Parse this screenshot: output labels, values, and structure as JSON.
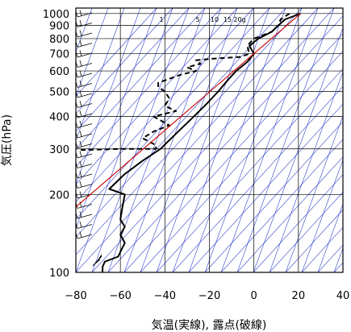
{
  "chart_data": {
    "type": "line",
    "title": "",
    "xlabel": "気温(実線), 露点(破線)",
    "ylabel": "気圧(hPa)",
    "xlim": [
      -80,
      40
    ],
    "ylim": [
      1050,
      100
    ],
    "y_scale": "log",
    "grid": true,
    "x_ticks": [
      -80,
      -60,
      -40,
      -20,
      0,
      20,
      40
    ],
    "x_tick_labels": [
      "−80",
      "−60",
      "−40",
      "−20",
      "0",
      "20",
      "40"
    ],
    "y_ticks": [
      100,
      200,
      300,
      400,
      500,
      600,
      700,
      800,
      900,
      1000
    ],
    "y_tick_labels": [
      "100",
      "200",
      "300",
      "400",
      "500",
      "600",
      "700",
      "800",
      "900",
      "1000"
    ],
    "mixing_ratio_labels": [
      "1",
      "5",
      "10",
      "15",
      "20g"
    ],
    "series": [
      {
        "style": "solid",
        "color": "#000000",
        "points": [
          [
            21,
            1000
          ],
          [
            14,
            950
          ],
          [
            11,
            900
          ],
          [
            8,
            850
          ],
          [
            2,
            800
          ],
          [
            -2,
            750
          ],
          [
            0,
            700
          ],
          [
            -3,
            650
          ],
          [
            -8,
            600
          ],
          [
            -12,
            550
          ],
          [
            -16,
            500
          ],
          [
            -21,
            450
          ],
          [
            -27,
            400
          ],
          [
            -34,
            350
          ],
          [
            -42,
            300
          ],
          [
            -50,
            270
          ],
          [
            -58,
            240
          ],
          [
            -65,
            210
          ],
          [
            -58,
            200
          ],
          [
            -59,
            180
          ],
          [
            -60,
            160
          ],
          [
            -58,
            150
          ],
          [
            -60,
            140
          ],
          [
            -58,
            130
          ],
          [
            -60,
            120
          ],
          [
            -61,
            115
          ],
          [
            -67,
            110
          ],
          [
            -68,
            105
          ],
          [
            -68,
            100
          ]
        ]
      },
      {
        "style": "dashed",
        "color": "#000000",
        "points": [
          [
            16,
            1000
          ],
          [
            12,
            950
          ],
          [
            11,
            900
          ],
          [
            8,
            850
          ],
          [
            0,
            800
          ],
          [
            -3,
            750
          ],
          [
            -2,
            700
          ],
          [
            -6,
            680
          ],
          [
            -18,
            670
          ],
          [
            -26,
            660
          ],
          [
            -24,
            640
          ],
          [
            -30,
            620
          ],
          [
            -26,
            600
          ],
          [
            -33,
            580
          ],
          [
            -43,
            540
          ],
          [
            -43,
            520
          ],
          [
            -40,
            500
          ],
          [
            -38,
            470
          ],
          [
            -40,
            440
          ],
          [
            -35,
            420
          ],
          [
            -45,
            400
          ],
          [
            -38,
            370
          ],
          [
            -45,
            350
          ],
          [
            -50,
            330
          ],
          [
            -44,
            310
          ],
          [
            -44,
            300
          ],
          [
            -60,
            300
          ],
          [
            -78,
            297
          ]
        ]
      },
      {
        "style": "solid",
        "color": "#cc0000",
        "points": [
          [
            21,
            1000
          ],
          [
            0,
            700
          ],
          [
            -83,
            170
          ]
        ]
      }
    ]
  }
}
